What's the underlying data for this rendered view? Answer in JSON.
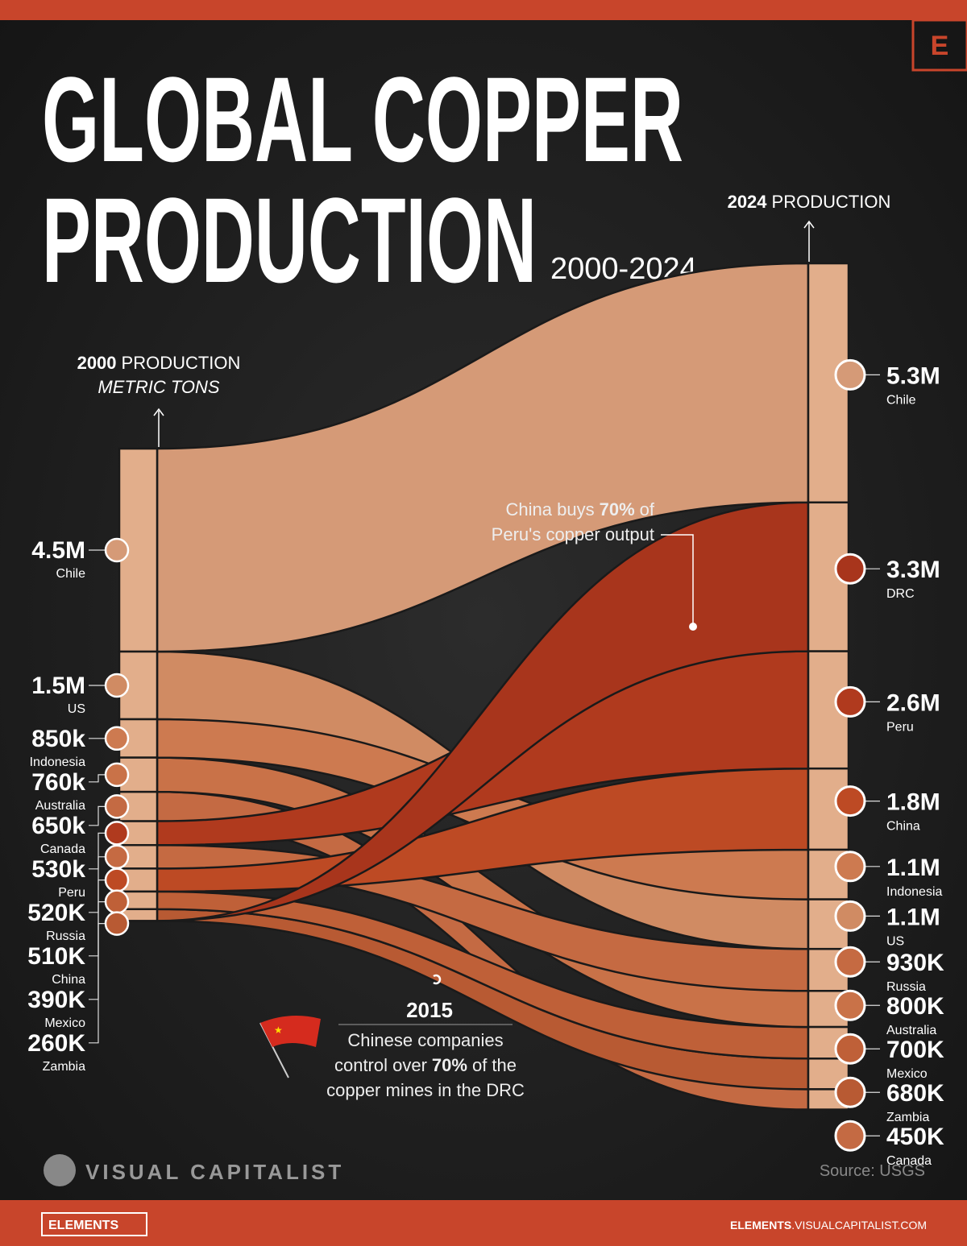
{
  "brand": {
    "logo": "E",
    "name": "VISUAL CAPITALIST",
    "source": "Source: USGS",
    "badge": "ELEMENTS",
    "site": [
      "ELEMENTS",
      ".VISUALCAPITALIST.COM"
    ]
  },
  "chart_data": {
    "type": "bump",
    "title": [
      "GLOBAL COPPER",
      "PRODUCTION"
    ],
    "subtitle": "2000-2024",
    "start_header": [
      "2000",
      "PRODUCTION"
    ],
    "unit": "METRIC TONS",
    "end_header": [
      "2024",
      "PRODUCTION"
    ],
    "series": [
      {
        "name": "Chile",
        "color": "#d59a77",
        "values": [
          4500000,
          5300000
        ],
        "value_labels": [
          "4.5M",
          "5.3M"
        ]
      },
      {
        "name": "DRC",
        "color": "#a8351c",
        "values": [
          null,
          3300000
        ],
        "value_labels": [
          null,
          "3.3M"
        ]
      },
      {
        "name": "Peru",
        "color": "#b03a1e",
        "values": [
          530000,
          2600000
        ],
        "value_labels": [
          "530k",
          "2.6M"
        ]
      },
      {
        "name": "China",
        "color": "#bd4a24",
        "values": [
          510000,
          1800000
        ],
        "value_labels": [
          "510K",
          "1.8M"
        ]
      },
      {
        "name": "Indonesia",
        "color": "#cd7a50",
        "values": [
          850000,
          1100000
        ],
        "value_labels": [
          "850k",
          "1.1M"
        ]
      },
      {
        "name": "US",
        "color": "#d08b63",
        "values": [
          1500000,
          1100000
        ],
        "value_labels": [
          "1.5M",
          "1.1M"
        ]
      },
      {
        "name": "Russia",
        "color": "#c56a42",
        "values": [
          520000,
          930000
        ],
        "value_labels": [
          "520K",
          "930K"
        ]
      },
      {
        "name": "Australia",
        "color": "#c97248",
        "values": [
          760000,
          800000
        ],
        "value_labels": [
          "760k",
          "800K"
        ]
      },
      {
        "name": "Mexico",
        "color": "#bf6038",
        "values": [
          390000,
          700000
        ],
        "value_labels": [
          "390K",
          "700K"
        ]
      },
      {
        "name": "Zambia",
        "color": "#b85a33",
        "values": [
          260000,
          680000
        ],
        "value_labels": [
          "260K",
          "680K"
        ]
      },
      {
        "name": "Canada",
        "color": "#c46a43",
        "values": [
          650000,
          450000
        ],
        "value_labels": [
          "650k",
          "450K"
        ]
      }
    ],
    "annotations": [
      {
        "lines": [
          [
            "China buys",
            "70%",
            "of"
          ],
          [
            "Peru's copper output"
          ]
        ]
      },
      {
        "year": "2015",
        "lines": [
          [
            "Chinese companies"
          ],
          [
            "control over",
            "70%",
            "of the"
          ],
          [
            "copper mines in the DRC"
          ]
        ]
      }
    ]
  }
}
